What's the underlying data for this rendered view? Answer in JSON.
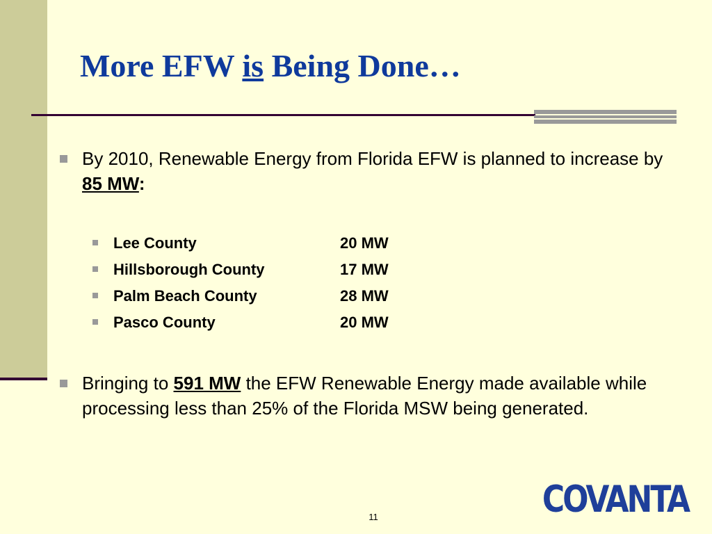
{
  "title": {
    "before": "More EFW ",
    "emphasis": "is",
    "after": " Being Done…"
  },
  "bullets": [
    {
      "text": "By 2010, Renewable Energy from Florida EFW is planned to increase by ",
      "highlight": "85 MW",
      "after": ":"
    },
    {
      "text": "Bringing to ",
      "highlight": "591 MW",
      "after": " the EFW Renewable Energy made available while processing less than 25% of the Florida MSW being generated."
    }
  ],
  "counties": [
    {
      "name": "Lee County",
      "capacity": "20 MW"
    },
    {
      "name": "Hillsborough County",
      "capacity": "17 MW"
    },
    {
      "name": "Palm Beach County",
      "capacity": "28 MW"
    },
    {
      "name": "Pasco County",
      "capacity": "20 MW"
    }
  ],
  "logo": "COVANTA",
  "page_number": "11"
}
